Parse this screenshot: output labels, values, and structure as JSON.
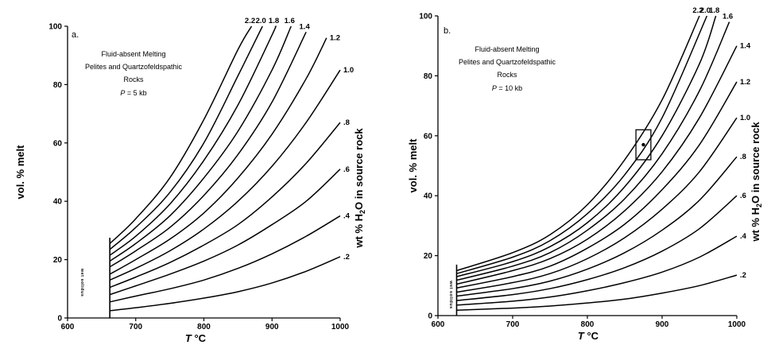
{
  "chart_data": [
    {
      "type": "line",
      "panel": "a.",
      "annotation": [
        "Fluid-absent Melting",
        "Pelites and Quartzofeldspathic",
        "Rocks",
        "P = 5 kb"
      ],
      "xlabel": "T °C",
      "ylabel": "vol. % melt",
      "right_label": "wt % H2O in source rock",
      "solidus_label": "wet solidus",
      "xlim": [
        600,
        1000
      ],
      "ylim": [
        0,
        100
      ],
      "xticks": [
        "600",
        "700",
        "800",
        "900",
        "1000"
      ],
      "yticks": [
        "0",
        "20",
        "40",
        "60",
        "80",
        "100"
      ],
      "grid": false,
      "legend": "none",
      "solidus_T": 662,
      "series": [
        {
          "name": "2.2",
          "x": [
            662,
            700,
            750,
            800,
            850,
            870
          ],
          "y": [
            25.5,
            34,
            48,
            68,
            92,
            100
          ]
        },
        {
          "name": "2.0",
          "x": [
            662,
            700,
            750,
            800,
            850,
            886
          ],
          "y": [
            23.5,
            31,
            43,
            60,
            83,
            100
          ]
        },
        {
          "name": "1.8",
          "x": [
            662,
            700,
            750,
            800,
            850,
            900,
            905
          ],
          "y": [
            21.5,
            28,
            39,
            54,
            73,
            97,
            100
          ]
        },
        {
          "name": "1.6",
          "x": [
            662,
            700,
            750,
            800,
            850,
            900,
            928
          ],
          "y": [
            19.5,
            25.5,
            35,
            48,
            64,
            85,
            100
          ]
        },
        {
          "name": "1.4",
          "x": [
            662,
            700,
            750,
            800,
            850,
            900,
            950
          ],
          "y": [
            17.5,
            23,
            31,
            42,
            56,
            74,
            98
          ]
        },
        {
          "name": "1.2",
          "x": [
            662,
            700,
            750,
            800,
            850,
            900,
            950,
            980
          ],
          "y": [
            15,
            20,
            27,
            36,
            48,
            63,
            82,
            96
          ]
        },
        {
          "name": "1.0",
          "x": [
            662,
            700,
            750,
            800,
            850,
            900,
            950,
            1000
          ],
          "y": [
            13,
            17,
            23,
            30.5,
            40,
            52,
            67,
            85
          ]
        },
        {
          "name": ".8",
          "x": [
            662,
            700,
            750,
            800,
            850,
            900,
            950,
            1000
          ],
          "y": [
            10.5,
            14,
            19,
            25,
            32,
            41.5,
            53,
            67
          ]
        },
        {
          "name": ".6",
          "x": [
            662,
            700,
            750,
            800,
            850,
            900,
            950,
            1000
          ],
          "y": [
            8,
            11,
            15,
            19.5,
            25,
            32,
            40,
            51
          ]
        },
        {
          "name": ".4",
          "x": [
            662,
            700,
            750,
            800,
            850,
            900,
            950,
            1000
          ],
          "y": [
            5.5,
            7.5,
            10,
            13,
            17,
            22,
            28,
            35
          ]
        },
        {
          "name": ".2",
          "x": [
            662,
            700,
            750,
            800,
            850,
            900,
            950,
            1000
          ],
          "y": [
            2.5,
            3.5,
            5,
            6.8,
            9,
            12,
            16,
            21
          ]
        }
      ]
    },
    {
      "type": "line",
      "panel": "b.",
      "annotation": [
        "Fluid-absent Melting",
        "Pelites and Quartzofeldspathic",
        "Rocks",
        "P = 10 kb"
      ],
      "xlabel": "T °C",
      "ylabel": "vol. % melt",
      "right_label": "wt % H2O in source rock",
      "solidus_label": "wet solidus",
      "xlim": [
        600,
        1000
      ],
      "ylim": [
        0,
        100
      ],
      "xticks": [
        "600",
        "700",
        "800",
        "900",
        "1000"
      ],
      "yticks": [
        "0",
        "20",
        "40",
        "60",
        "80",
        "100"
      ],
      "grid": false,
      "legend": "none",
      "solidus_T": 625,
      "marked_point": {
        "x": 875,
        "y": 57,
        "box": {
          "x0": 865,
          "x1": 885,
          "y0": 52,
          "y1": 62
        }
      },
      "series": [
        {
          "name": "2.2",
          "x": [
            625,
            700,
            750,
            800,
            850,
            900,
            950
          ],
          "y": [
            15,
            21,
            27,
            37,
            52,
            72,
            100
          ]
        },
        {
          "name": "2.0",
          "x": [
            625,
            700,
            750,
            800,
            850,
            900,
            960
          ],
          "y": [
            14,
            19.5,
            25,
            34,
            47,
            66,
            100
          ]
        },
        {
          "name": "1.8",
          "x": [
            625,
            700,
            750,
            800,
            850,
            900,
            950,
            972
          ],
          "y": [
            13,
            18,
            23,
            31,
            43,
            60,
            84,
            100
          ]
        },
        {
          "name": "1.6",
          "x": [
            625,
            700,
            750,
            800,
            850,
            900,
            950,
            990
          ],
          "y": [
            11.8,
            16.5,
            21,
            28.5,
            39,
            54,
            75,
            98
          ]
        },
        {
          "name": "1.4",
          "x": [
            625,
            700,
            750,
            800,
            850,
            900,
            950,
            1000
          ],
          "y": [
            10.5,
            15,
            19,
            25.5,
            35,
            48,
            66,
            90
          ]
        },
        {
          "name": "1.2",
          "x": [
            625,
            700,
            750,
            800,
            850,
            900,
            950,
            1000
          ],
          "y": [
            9.2,
            13,
            16.5,
            22.5,
            30.5,
            42,
            57,
            78
          ]
        },
        {
          "name": "1.0",
          "x": [
            625,
            700,
            750,
            800,
            850,
            900,
            950,
            1000
          ],
          "y": [
            7.8,
            11,
            14,
            19,
            26,
            35.5,
            48,
            66
          ]
        },
        {
          "name": ".8",
          "x": [
            625,
            700,
            750,
            800,
            850,
            900,
            950,
            1000
          ],
          "y": [
            6.5,
            9,
            11.5,
            15.5,
            21,
            28.5,
            38.5,
            53
          ]
        },
        {
          "name": ".6",
          "x": [
            625,
            700,
            750,
            800,
            850,
            900,
            950,
            1000
          ],
          "y": [
            5,
            7,
            9,
            12,
            16,
            21.5,
            29,
            40
          ]
        },
        {
          "name": ".4",
          "x": [
            625,
            700,
            750,
            800,
            850,
            900,
            950,
            1000
          ],
          "y": [
            3.5,
            4.8,
            6.2,
            8.3,
            11,
            14.5,
            19.5,
            26.5
          ]
        },
        {
          "name": ".2",
          "x": [
            625,
            700,
            750,
            800,
            850,
            900,
            950,
            1000
          ],
          "y": [
            1.8,
            2.5,
            3.2,
            4.2,
            5.5,
            7.5,
            10,
            13.5
          ]
        }
      ]
    }
  ]
}
